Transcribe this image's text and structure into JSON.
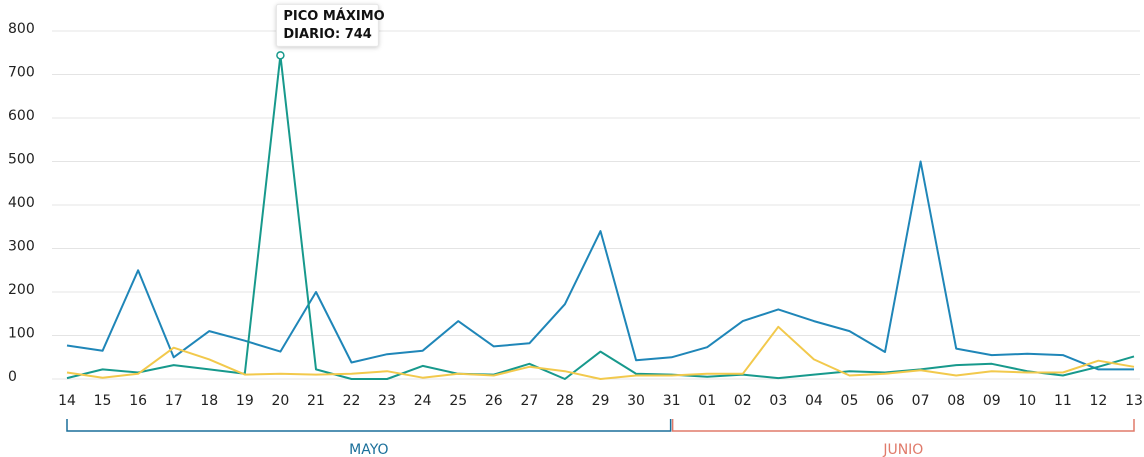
{
  "chart_data": {
    "type": "line",
    "categories": [
      "14",
      "15",
      "16",
      "17",
      "18",
      "19",
      "20",
      "21",
      "22",
      "23",
      "24",
      "25",
      "26",
      "27",
      "28",
      "29",
      "30",
      "31",
      "01",
      "02",
      "03",
      "04",
      "05",
      "06",
      "07",
      "08",
      "09",
      "10",
      "11",
      "12",
      "13"
    ],
    "series": [
      {
        "color": "#1f86b8",
        "values": [
          77,
          65,
          250,
          50,
          110,
          88,
          63,
          200,
          38,
          57,
          65,
          133,
          75,
          82,
          172,
          340,
          43,
          50,
          73,
          133,
          160,
          133,
          110,
          62,
          500,
          70,
          55,
          58,
          55,
          22,
          22
        ]
      },
      {
        "color": "#17998c",
        "values": [
          2,
          22,
          15,
          32,
          22,
          12,
          744,
          22,
          0,
          0,
          30,
          12,
          10,
          35,
          0,
          63,
          12,
          10,
          5,
          10,
          2,
          10,
          18,
          15,
          22,
          32,
          35,
          18,
          8,
          28,
          52
        ]
      },
      {
        "color": "#f2c94c",
        "values": [
          15,
          3,
          12,
          72,
          45,
          10,
          12,
          10,
          12,
          18,
          3,
          12,
          8,
          28,
          18,
          0,
          8,
          8,
          12,
          12,
          120,
          45,
          8,
          12,
          20,
          8,
          18,
          15,
          15,
          42,
          28
        ]
      }
    ],
    "annotation": [
      "PICO MÁXIMO",
      "DIARIO: 744"
    ],
    "groups": [
      {
        "label": "MAYO",
        "color": "#1a6f9a"
      },
      {
        "label": "JUNIO",
        "color": "#e07a6a"
      }
    ],
    "ylim": [
      0,
      800
    ],
    "yticks": [
      0,
      100,
      200,
      300,
      400,
      500,
      600,
      700,
      800
    ],
    "grid": true
  }
}
